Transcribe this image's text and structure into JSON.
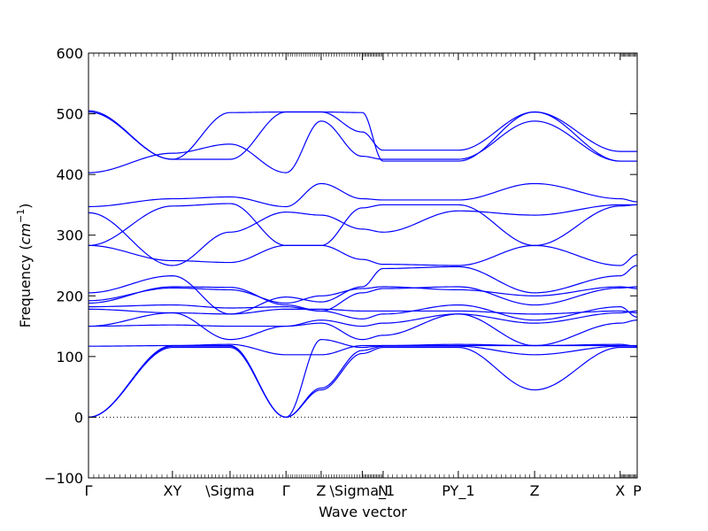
{
  "chart_data": {
    "type": "line",
    "title": "",
    "xlabel": "Wave vector",
    "ylabel": "Frequency (cm⁻¹)",
    "ylabel_parts": {
      "text": "Frequency (",
      "unit_base": "cm",
      "unit_exp": "−1",
      "close": ")"
    },
    "ylim": [
      -100,
      600
    ],
    "yticks": [
      -100,
      0,
      100,
      200,
      300,
      400,
      500,
      600
    ],
    "xlim": [
      0,
      1
    ],
    "xticks": [
      {
        "x": 0.0,
        "label": "Γ"
      },
      {
        "x": 0.153,
        "label": "XY"
      },
      {
        "x": 0.258,
        "label": "\\Sigma"
      },
      {
        "x": 0.36,
        "label": "Γ"
      },
      {
        "x": 0.424,
        "label": "Z"
      },
      {
        "x": 0.499,
        "label": "\\Sigma_1"
      },
      {
        "x": 0.537,
        "label": "N"
      },
      {
        "x": 0.674,
        "label": "PY_1"
      },
      {
        "x": 0.813,
        "label": "Z"
      },
      {
        "x": 0.969,
        "label": "X"
      },
      {
        "x": 1.0,
        "label": "P"
      }
    ],
    "zero_line": {
      "y": 0,
      "style": "dotted"
    },
    "line_color": "#0000ff",
    "segment_boundaries": [
      0.0,
      0.153,
      0.258,
      0.36,
      0.424,
      0.499,
      0.537,
      0.674,
      0.813,
      0.969,
      1.0
    ],
    "series": [
      {
        "x": [
          0.0,
          0.153,
          0.258,
          0.36,
          0.424,
          0.499,
          0.537,
          0.674,
          0.813,
          0.969,
          1.0
        ],
        "y": [
          0,
          115,
          115,
          0,
          45,
          105,
          115,
          115,
          45,
          115,
          115
        ]
      },
      {
        "x": [
          0.0,
          0.153,
          0.258,
          0.36,
          0.424,
          0.499,
          0.537,
          0.674,
          0.813,
          0.969,
          1.0
        ],
        "y": [
          0,
          117,
          117,
          0,
          48,
          110,
          117,
          117,
          103,
          117,
          117
        ]
      },
      {
        "x": [
          0.0,
          0.153,
          0.258,
          0.36,
          0.424,
          0.499,
          0.537,
          0.674,
          0.813,
          0.969,
          1.0
        ],
        "y": [
          0,
          118,
          118,
          0,
          128,
          115,
          118,
          118,
          118,
          118,
          118
        ]
      },
      {
        "x": [
          0.0,
          0.153,
          0.258,
          0.36,
          0.424,
          0.499,
          0.537,
          0.674,
          0.813,
          0.969,
          1.0
        ],
        "y": [
          117,
          118,
          120,
          103,
          103,
          118,
          118,
          120,
          118,
          120,
          117
        ]
      },
      {
        "x": [
          0.0,
          0.153,
          0.258,
          0.36,
          0.424,
          0.499,
          0.537,
          0.674,
          0.813,
          0.969,
          1.0
        ],
        "y": [
          150,
          172,
          128,
          150,
          155,
          128,
          135,
          170,
          118,
          155,
          160
        ]
      },
      {
        "x": [
          0.0,
          0.153,
          0.258,
          0.36,
          0.424,
          0.499,
          0.537,
          0.674,
          0.813,
          0.969,
          1.0
        ],
        "y": [
          150,
          152,
          150,
          150,
          160,
          150,
          155,
          170,
          155,
          172,
          175
        ]
      },
      {
        "x": [
          0.0,
          0.153,
          0.258,
          0.36,
          0.424,
          0.499,
          0.537,
          0.674,
          0.813,
          0.969,
          1.0
        ],
        "y": [
          178,
          172,
          170,
          178,
          178,
          175,
          175,
          175,
          170,
          175,
          172
        ]
      },
      {
        "x": [
          0.0,
          0.153,
          0.258,
          0.36,
          0.424,
          0.499,
          0.537,
          0.674,
          0.813,
          0.969,
          1.0
        ],
        "y": [
          182,
          185,
          180,
          182,
          175,
          162,
          170,
          185,
          160,
          182,
          165
        ]
      },
      {
        "x": [
          0.0,
          0.153,
          0.258,
          0.36,
          0.424,
          0.499,
          0.537,
          0.674,
          0.813,
          0.969,
          1.0
        ],
        "y": [
          188,
          215,
          214,
          185,
          175,
          205,
          212,
          215,
          185,
          213,
          215
        ]
      },
      {
        "x": [
          0.0,
          0.153,
          0.258,
          0.36,
          0.424,
          0.499,
          0.537,
          0.674,
          0.813,
          0.969,
          1.0
        ],
        "y": [
          192,
          213,
          210,
          188,
          200,
          212,
          215,
          210,
          200,
          215,
          212
        ]
      },
      {
        "x": [
          0.0,
          0.153,
          0.258,
          0.36,
          0.424,
          0.499,
          0.537,
          0.674,
          0.813,
          0.969,
          1.0
        ],
        "y": [
          205,
          233,
          170,
          198,
          190,
          215,
          245,
          248,
          205,
          233,
          250
        ]
      },
      {
        "x": [
          0.0,
          0.153,
          0.258,
          0.36,
          0.424,
          0.499,
          0.537,
          0.674,
          0.813,
          0.969,
          1.0
        ],
        "y": [
          283,
          258,
          255,
          283,
          283,
          260,
          252,
          250,
          283,
          250,
          268
        ]
      },
      {
        "x": [
          0.0,
          0.153,
          0.258,
          0.36,
          0.424,
          0.499,
          0.537,
          0.674,
          0.813,
          0.969,
          1.0
        ],
        "y": [
          337,
          250,
          305,
          338,
          333,
          310,
          305,
          340,
          333,
          350,
          350
        ]
      },
      {
        "x": [
          0.0,
          0.153,
          0.258,
          0.36,
          0.424,
          0.499,
          0.537,
          0.674,
          0.813,
          0.969,
          1.0
        ],
        "y": [
          283,
          348,
          352,
          283,
          283,
          345,
          350,
          350,
          283,
          348,
          350
        ]
      },
      {
        "x": [
          0.0,
          0.153,
          0.258,
          0.36,
          0.424,
          0.499,
          0.537,
          0.674,
          0.813,
          0.969,
          1.0
        ],
        "y": [
          347,
          360,
          363,
          347,
          385,
          360,
          358,
          358,
          385,
          360,
          355
        ]
      },
      {
        "x": [
          0.0,
          0.153,
          0.258,
          0.36,
          0.424,
          0.499,
          0.537,
          0.674,
          0.813,
          0.969,
          1.0
        ],
        "y": [
          403,
          435,
          450,
          403,
          488,
          430,
          425,
          425,
          488,
          422,
          422
        ]
      },
      {
        "x": [
          0.0,
          0.153,
          0.258,
          0.36,
          0.424,
          0.499,
          0.537,
          0.674,
          0.813,
          0.969,
          1.0
        ],
        "y": [
          505,
          425,
          425,
          503,
          503,
          470,
          440,
          440,
          503,
          438,
          438
        ]
      },
      {
        "x": [
          0.0,
          0.153,
          0.258,
          0.36,
          0.424,
          0.499,
          0.537,
          0.674,
          0.813,
          0.969,
          1.0
        ],
        "y": [
          503,
          425,
          502,
          503,
          503,
          502,
          422,
          422,
          503,
          422,
          422
        ]
      }
    ]
  }
}
